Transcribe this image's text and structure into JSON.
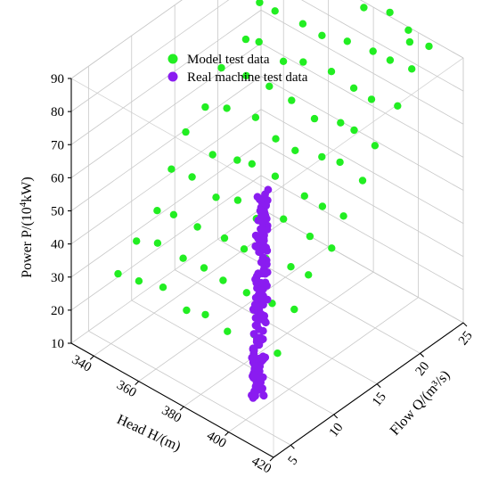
{
  "chart_data": {
    "type": "scatter3d",
    "axes": {
      "x": {
        "label_prefix": "Head  H",
        "label_unit": "/(m)",
        "ticks": [
          "340",
          "360",
          "380",
          "400",
          "420"
        ],
        "range": [
          330,
          420
        ]
      },
      "y": {
        "label_prefix": "Flow  Q",
        "label_unit": "/(m³/s)",
        "ticks": [
          "5",
          "10",
          "15",
          "20",
          "25"
        ],
        "range": [
          3,
          25
        ]
      },
      "z": {
        "label_prefix": "Power  P/(10",
        "label_sup": "4",
        "label_suffix": "kW)",
        "ticks": [
          "10",
          "20",
          "30",
          "40",
          "50",
          "60",
          "70",
          "80",
          "90"
        ],
        "range": [
          10,
          90
        ]
      }
    },
    "legend": {
      "placement": "top-center",
      "entries": [
        "Model test data",
        "Real machine test data"
      ]
    },
    "series": [
      {
        "name": "Model test data",
        "color": "#22ee22",
        "marker": "circle"
      },
      {
        "name": "Real machine test data",
        "color": "#8a1cf0",
        "marker": "circle"
      }
    ],
    "model_grid": {
      "heads": [
        340,
        350,
        360,
        370,
        380,
        390,
        400,
        410
      ],
      "flows": [
        6,
        8,
        10,
        12,
        14,
        16,
        18,
        20,
        22,
        24
      ],
      "extra_points": [
        {
          "head": 400,
          "flow": 24,
          "power": 89
        }
      ]
    },
    "real_machine": {
      "head_range": [
        385,
        405
      ],
      "flow_range": [
        5,
        11
      ],
      "power_range": [
        18,
        62
      ],
      "count": 170
    }
  }
}
